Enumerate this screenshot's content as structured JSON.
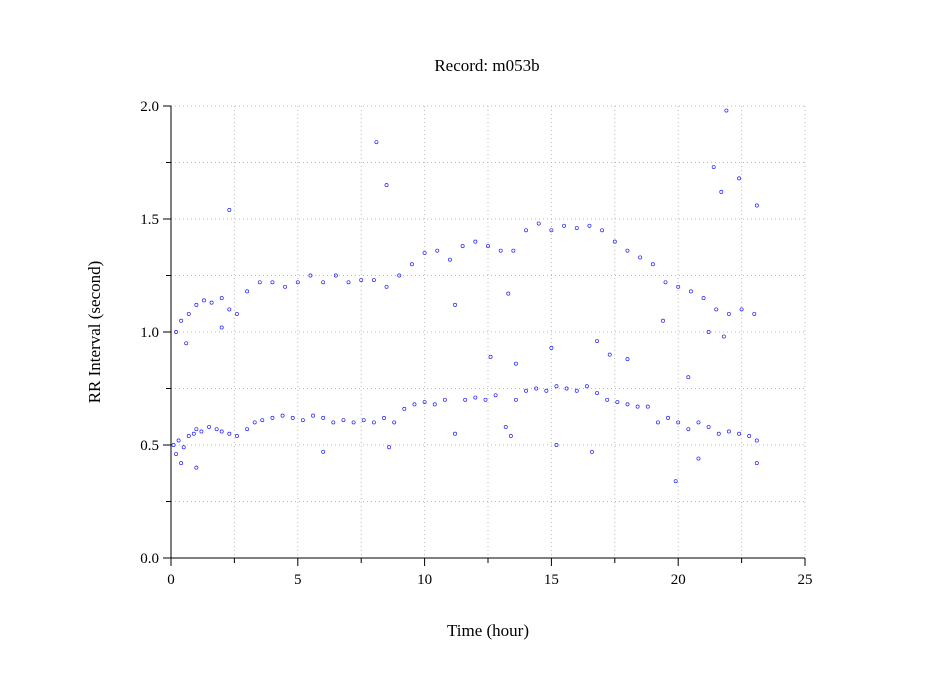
{
  "chart_data": {
    "type": "scatter",
    "title": "Record:  m053b",
    "xlabel": "Time (hour)",
    "ylabel": "RR Interval (second)",
    "xlim": [
      0,
      25
    ],
    "ylim": [
      0,
      2
    ],
    "x_ticks": [
      0,
      5,
      10,
      15,
      20,
      25
    ],
    "x_tick_labels": [
      "0",
      "5",
      "10",
      "15",
      "20",
      "25"
    ],
    "y_ticks": [
      0,
      0.5,
      1.0,
      1.5,
      2.0
    ],
    "y_tick_labels": [
      "0.0",
      "0.5",
      "1.0",
      "1.5",
      "2.0"
    ],
    "grid": true,
    "marker_color": "#1f1fff",
    "series": [
      {
        "points": [
          [
            0.1,
            0.5
          ],
          [
            0.2,
            0.46
          ],
          [
            0.3,
            0.52
          ],
          [
            0.5,
            0.49
          ],
          [
            0.7,
            0.54
          ],
          [
            0.9,
            0.55
          ],
          [
            1.0,
            0.57
          ],
          [
            1.2,
            0.56
          ],
          [
            1.5,
            0.58
          ],
          [
            1.8,
            0.57
          ],
          [
            2.0,
            0.56
          ],
          [
            2.3,
            0.55
          ],
          [
            2.6,
            0.54
          ],
          [
            3.0,
            0.57
          ],
          [
            3.3,
            0.6
          ],
          [
            3.6,
            0.61
          ],
          [
            4.0,
            0.62
          ],
          [
            4.4,
            0.63
          ],
          [
            4.8,
            0.62
          ],
          [
            5.2,
            0.61
          ],
          [
            5.6,
            0.63
          ],
          [
            6.0,
            0.62
          ],
          [
            6.4,
            0.6
          ],
          [
            6.8,
            0.61
          ],
          [
            7.2,
            0.6
          ],
          [
            7.6,
            0.61
          ],
          [
            8.0,
            0.6
          ],
          [
            8.4,
            0.62
          ],
          [
            8.8,
            0.6
          ],
          [
            9.2,
            0.66
          ],
          [
            9.6,
            0.68
          ],
          [
            10.0,
            0.69
          ],
          [
            10.4,
            0.68
          ],
          [
            10.8,
            0.7
          ],
          [
            11.2,
            0.55
          ],
          [
            11.6,
            0.7
          ],
          [
            12.0,
            0.71
          ],
          [
            12.4,
            0.7
          ],
          [
            12.8,
            0.72
          ],
          [
            13.2,
            0.58
          ],
          [
            13.6,
            0.7
          ],
          [
            14.0,
            0.74
          ],
          [
            14.4,
            0.75
          ],
          [
            14.8,
            0.74
          ],
          [
            15.2,
            0.76
          ],
          [
            15.6,
            0.75
          ],
          [
            16.0,
            0.74
          ],
          [
            16.4,
            0.76
          ],
          [
            16.8,
            0.73
          ],
          [
            17.2,
            0.7
          ],
          [
            17.6,
            0.69
          ],
          [
            18.0,
            0.68
          ],
          [
            18.4,
            0.67
          ],
          [
            18.8,
            0.67
          ],
          [
            19.2,
            0.6
          ],
          [
            19.6,
            0.62
          ],
          [
            20.0,
            0.6
          ],
          [
            20.4,
            0.57
          ],
          [
            20.8,
            0.6
          ],
          [
            21.2,
            0.58
          ],
          [
            21.6,
            0.55
          ],
          [
            22.0,
            0.56
          ],
          [
            22.4,
            0.55
          ],
          [
            22.8,
            0.54
          ],
          [
            23.1,
            0.52
          ],
          [
            0.2,
            1.0
          ],
          [
            0.4,
            1.05
          ],
          [
            0.7,
            1.08
          ],
          [
            1.0,
            1.12
          ],
          [
            1.3,
            1.14
          ],
          [
            1.6,
            1.13
          ],
          [
            2.0,
            1.15
          ],
          [
            2.3,
            1.1
          ],
          [
            2.6,
            1.08
          ],
          [
            3.0,
            1.18
          ],
          [
            3.5,
            1.22
          ],
          [
            4.0,
            1.22
          ],
          [
            4.5,
            1.2
          ],
          [
            5.0,
            1.22
          ],
          [
            5.5,
            1.25
          ],
          [
            6.0,
            1.22
          ],
          [
            6.5,
            1.25
          ],
          [
            7.0,
            1.22
          ],
          [
            7.5,
            1.23
          ],
          [
            8.0,
            1.23
          ],
          [
            8.5,
            1.2
          ],
          [
            9.0,
            1.25
          ],
          [
            9.5,
            1.3
          ],
          [
            10.0,
            1.35
          ],
          [
            10.5,
            1.36
          ],
          [
            11.0,
            1.32
          ],
          [
            11.5,
            1.38
          ],
          [
            12.0,
            1.4
          ],
          [
            12.5,
            1.38
          ],
          [
            13.0,
            1.36
          ],
          [
            13.5,
            1.36
          ],
          [
            14.0,
            1.45
          ],
          [
            14.5,
            1.48
          ],
          [
            15.0,
            1.45
          ],
          [
            15.5,
            1.47
          ],
          [
            16.0,
            1.46
          ],
          [
            16.5,
            1.47
          ],
          [
            17.0,
            1.45
          ],
          [
            17.5,
            1.4
          ],
          [
            18.0,
            1.36
          ],
          [
            18.5,
            1.33
          ],
          [
            19.0,
            1.3
          ],
          [
            19.5,
            1.22
          ],
          [
            20.0,
            1.2
          ],
          [
            20.5,
            1.18
          ],
          [
            21.0,
            1.15
          ],
          [
            21.5,
            1.1
          ],
          [
            22.0,
            1.08
          ],
          [
            22.5,
            1.1
          ],
          [
            23.0,
            1.08
          ],
          [
            2.3,
            1.54
          ],
          [
            8.1,
            1.84
          ],
          [
            8.5,
            1.65
          ],
          [
            21.4,
            1.73
          ],
          [
            21.9,
            1.98
          ],
          [
            21.7,
            1.62
          ],
          [
            22.4,
            1.68
          ],
          [
            23.1,
            1.56
          ],
          [
            0.6,
            0.95
          ],
          [
            2.0,
            1.02
          ],
          [
            11.2,
            1.12
          ],
          [
            13.3,
            1.17
          ],
          [
            19.4,
            1.05
          ],
          [
            21.2,
            1.0
          ],
          [
            21.8,
            0.98
          ],
          [
            12.6,
            0.89
          ],
          [
            13.6,
            0.86
          ],
          [
            15.0,
            0.93
          ],
          [
            16.8,
            0.96
          ],
          [
            17.3,
            0.9
          ],
          [
            18.0,
            0.88
          ],
          [
            20.4,
            0.8
          ],
          [
            0.4,
            0.42
          ],
          [
            1.0,
            0.4
          ],
          [
            6.0,
            0.47
          ],
          [
            8.6,
            0.49
          ],
          [
            13.4,
            0.54
          ],
          [
            15.2,
            0.5
          ],
          [
            16.6,
            0.47
          ],
          [
            19.9,
            0.34
          ],
          [
            20.8,
            0.44
          ],
          [
            23.1,
            0.42
          ]
        ]
      }
    ]
  }
}
